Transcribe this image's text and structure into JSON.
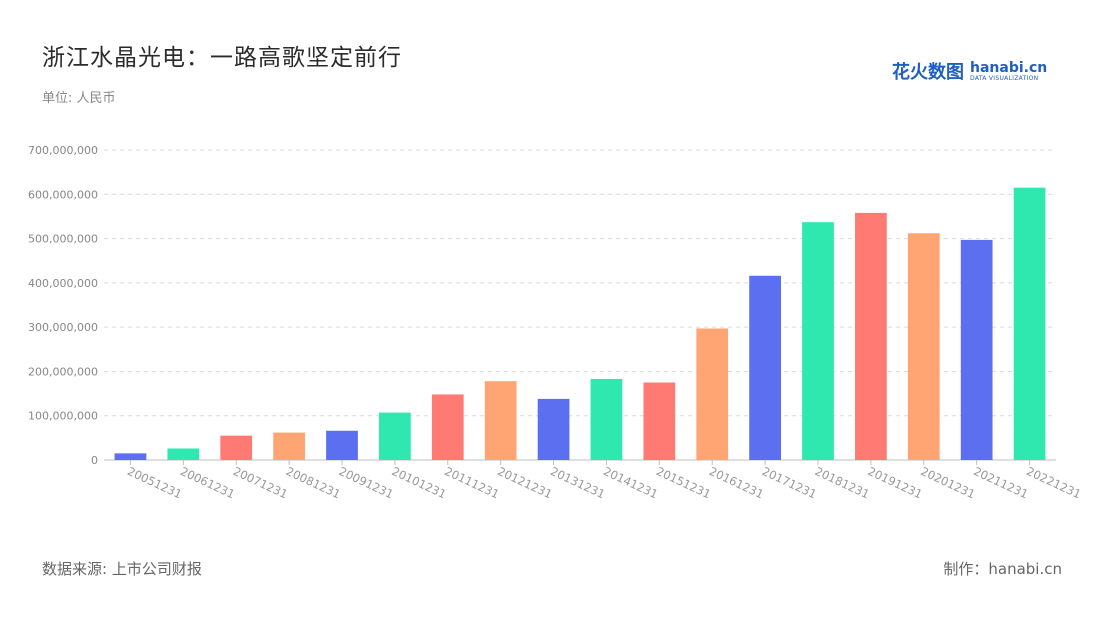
{
  "title": "浙江水晶光电：一路高歌坚定前行",
  "unit": "单位: 人民币",
  "logo": {
    "cn": "花火数图",
    "en": "hanabi.cn",
    "tag": "DATA VISUALIZATION"
  },
  "source": "数据来源: 上市公司财报",
  "credit": "制作：hanabi.cn",
  "colors": [
    "#5b6ff0",
    "#2ee8b0",
    "#ff7a72",
    "#ffa574"
  ],
  "chart_data": {
    "type": "bar",
    "ylim": [
      0,
      700000000
    ],
    "yticks": [
      0,
      100000000,
      200000000,
      300000000,
      400000000,
      500000000,
      600000000,
      700000000
    ],
    "ytick_labels": [
      "0",
      "100,000,000",
      "200,000,000",
      "300,000,000",
      "400,000,000",
      "500,000,000",
      "600,000,000",
      "700,000,000"
    ],
    "grid": true,
    "categories": [
      "20051231",
      "20061231",
      "20071231",
      "20081231",
      "20091231",
      "20101231",
      "20111231",
      "20121231",
      "20131231",
      "20141231",
      "20151231",
      "20161231",
      "20171231",
      "20181231",
      "20191231",
      "20201231",
      "20211231",
      "20221231"
    ],
    "values": [
      15000000,
      26000000,
      55000000,
      62000000,
      66000000,
      107000000,
      148000000,
      178000000,
      138000000,
      183000000,
      175000000,
      297000000,
      416000000,
      537000000,
      558000000,
      512000000,
      497000000,
      615000000
    ]
  }
}
